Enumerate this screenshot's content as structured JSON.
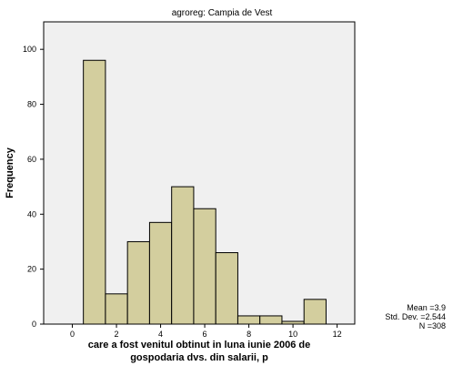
{
  "chart_data": {
    "type": "bar",
    "subtitle": "agroreg: Campia de Vest",
    "xlabel_lines": [
      "care a fost venitul obtinut in luna iunie 2006 de",
      "gospodaria dvs. din salarii, p"
    ],
    "ylabel": "Frequency",
    "bins": [
      {
        "x0": 0.5,
        "x1": 1.5,
        "count": 96
      },
      {
        "x0": 1.5,
        "x1": 2.5,
        "count": 11
      },
      {
        "x0": 2.5,
        "x1": 3.5,
        "count": 30
      },
      {
        "x0": 3.5,
        "x1": 4.5,
        "count": 37
      },
      {
        "x0": 4.5,
        "x1": 5.5,
        "count": 50
      },
      {
        "x0": 5.5,
        "x1": 6.5,
        "count": 42
      },
      {
        "x0": 6.5,
        "x1": 7.5,
        "count": 26
      },
      {
        "x0": 7.5,
        "x1": 8.5,
        "count": 3
      },
      {
        "x0": 8.5,
        "x1": 9.5,
        "count": 3
      },
      {
        "x0": 9.5,
        "x1": 10.5,
        "count": 1
      },
      {
        "x0": 10.5,
        "x1": 11.5,
        "count": 9
      }
    ],
    "xlim": [
      -1.3,
      12.8
    ],
    "ylim": [
      0,
      110
    ],
    "xticks": [
      0,
      2,
      4,
      6,
      8,
      10,
      12
    ],
    "yticks": [
      0,
      20,
      40,
      60,
      80,
      100
    ],
    "grid": false,
    "colors": {
      "bar_fill": "#d3ce9e",
      "bar_stroke": "#000000",
      "plot_bg": "#f0f0f0"
    },
    "stats": {
      "mean": "Mean =3.9",
      "std": "Std. Dev. =2.544",
      "n": "N =308"
    }
  }
}
